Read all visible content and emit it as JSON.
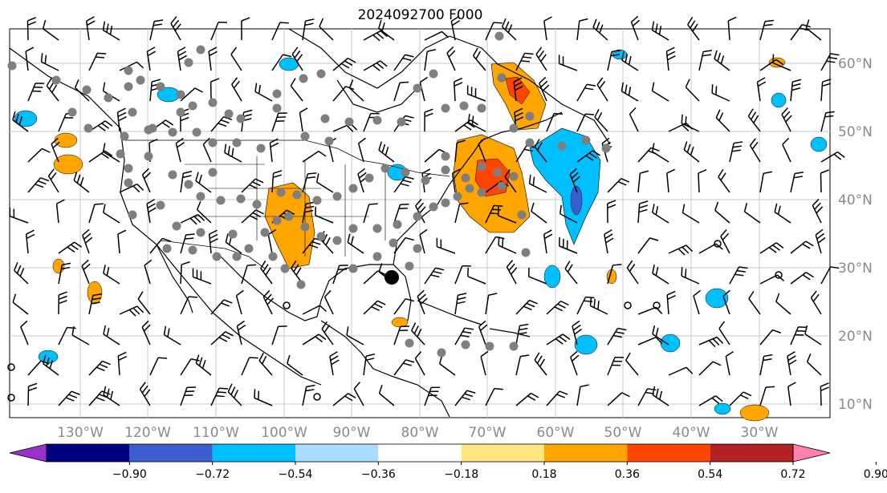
{
  "title": "2024092700 F000",
  "longitude_labels": [
    "130°W",
    "120°W",
    "110°W",
    "100°W",
    "90°W",
    "80°W",
    "70°W",
    "60°W",
    "50°W",
    "40°W",
    "30°W"
  ],
  "latitude_labels": [
    "60°N",
    "50°N",
    "40°N",
    "30°N",
    "20°N",
    "10°N"
  ],
  "colorbar": {
    "ticks": [
      "−0.90",
      "−0.72",
      "−0.54",
      "−0.36",
      "−0.18",
      "0.18",
      "0.36",
      "0.54",
      "0.72",
      "0.90"
    ],
    "colors": [
      "#9932cc",
      "#000080",
      "#3a5fcd",
      "#00bfff",
      "#aadcff",
      "#ffffff",
      "#ffe680",
      "#ffa500",
      "#ff4500",
      "#b22222",
      "#ff80b0"
    ],
    "extend": "both"
  },
  "overlays": {
    "gray_dots": "observation-points",
    "black_dot": "storm-center",
    "wind_barbs": "wind-barbs",
    "coastlines": "coastlines-and-borders"
  },
  "gridlines": true
}
